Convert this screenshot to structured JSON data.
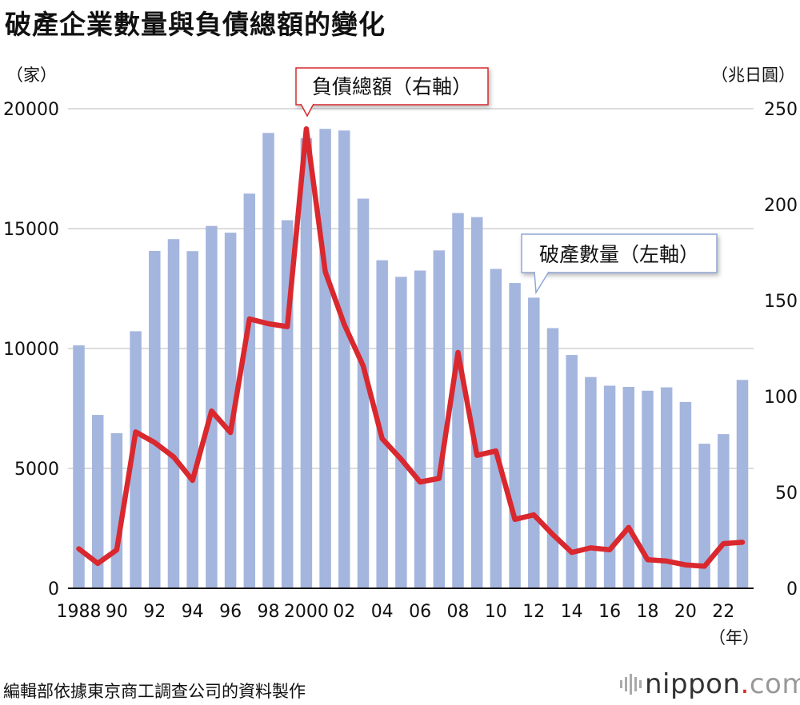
{
  "title": "破產企業數量與負債總額的變化",
  "units": {
    "left": "（家）",
    "right": "（兆日圓）",
    "x": "（年）"
  },
  "source": "編輯部依據東京商工調查公司的資料製作",
  "brand": {
    "name": "nippon",
    "dot": ".",
    "suffix": "com"
  },
  "colors": {
    "bar": "#a4b5de",
    "line": "#d9282e",
    "grid": "#c8c8c8",
    "axis": "#111111",
    "callout_red_border": "#d9282e",
    "callout_blue_border": "#8fa6d6"
  },
  "chart_data": {
    "type": "bar+line",
    "title": "破產企業數量與負債總額的變化",
    "xlabel": "（年）",
    "ylabel_left": "（家）",
    "ylabel_right": "（兆日圓）",
    "ylim_left": [
      0,
      20000
    ],
    "ylim_right": [
      0,
      250
    ],
    "grid": true,
    "years": [
      1988,
      1989,
      1990,
      1991,
      1992,
      1993,
      1994,
      1995,
      1996,
      1997,
      1998,
      1999,
      2000,
      2001,
      2002,
      2003,
      2004,
      2005,
      2006,
      2007,
      2008,
      2009,
      2010,
      2011,
      2012,
      2013,
      2014,
      2015,
      2016,
      2017,
      2018,
      2019,
      2020,
      2021,
      2022,
      2023
    ],
    "x_tick_labels": [
      "1988",
      "90",
      "92",
      "94",
      "96",
      "98",
      "2000",
      "02",
      "04",
      "06",
      "08",
      "10",
      "12",
      "14",
      "16",
      "18",
      "20",
      "22"
    ],
    "left_ticks": [
      "20000",
      "15000",
      "10000",
      "5000",
      "0"
    ],
    "right_ticks": [
      "250",
      "200",
      "150",
      "100",
      "50",
      "0"
    ],
    "series": [
      {
        "name": "破產數量",
        "axis": "left",
        "type": "bar",
        "label": "破產數量（左軸）",
        "values": [
          10130,
          7230,
          6470,
          10720,
          14070,
          14560,
          14060,
          15110,
          14830,
          16460,
          18990,
          15350,
          18770,
          19160,
          19090,
          16250,
          13680,
          12990,
          13250,
          14090,
          15650,
          15480,
          13320,
          12730,
          12120,
          10850,
          9730,
          8810,
          8450,
          8400,
          8240,
          8380,
          7770,
          6030,
          6430,
          8690
        ]
      },
      {
        "name": "負債總額",
        "axis": "right",
        "type": "line",
        "label": "負債總額（右軸）",
        "values": [
          20.6,
          13.0,
          20.0,
          81.5,
          76.0,
          68.5,
          56.3,
          92.4,
          81.2,
          140.4,
          137.9,
          136.4,
          239.5,
          165.0,
          137.6,
          115.9,
          78.0,
          67.3,
          55.4,
          57.3,
          122.9,
          69.3,
          71.6,
          35.9,
          38.3,
          28.0,
          18.7,
          21.1,
          20.1,
          31.7,
          14.9,
          14.2,
          12.2,
          11.5,
          23.3,
          24.0
        ]
      }
    ],
    "annotations": [
      {
        "text": "負債總額（右軸）",
        "series": "負債總額",
        "anchor_year": 2000
      },
      {
        "text": "破產數量（左軸）",
        "series": "破產數量",
        "anchor_year": 2012
      }
    ]
  }
}
